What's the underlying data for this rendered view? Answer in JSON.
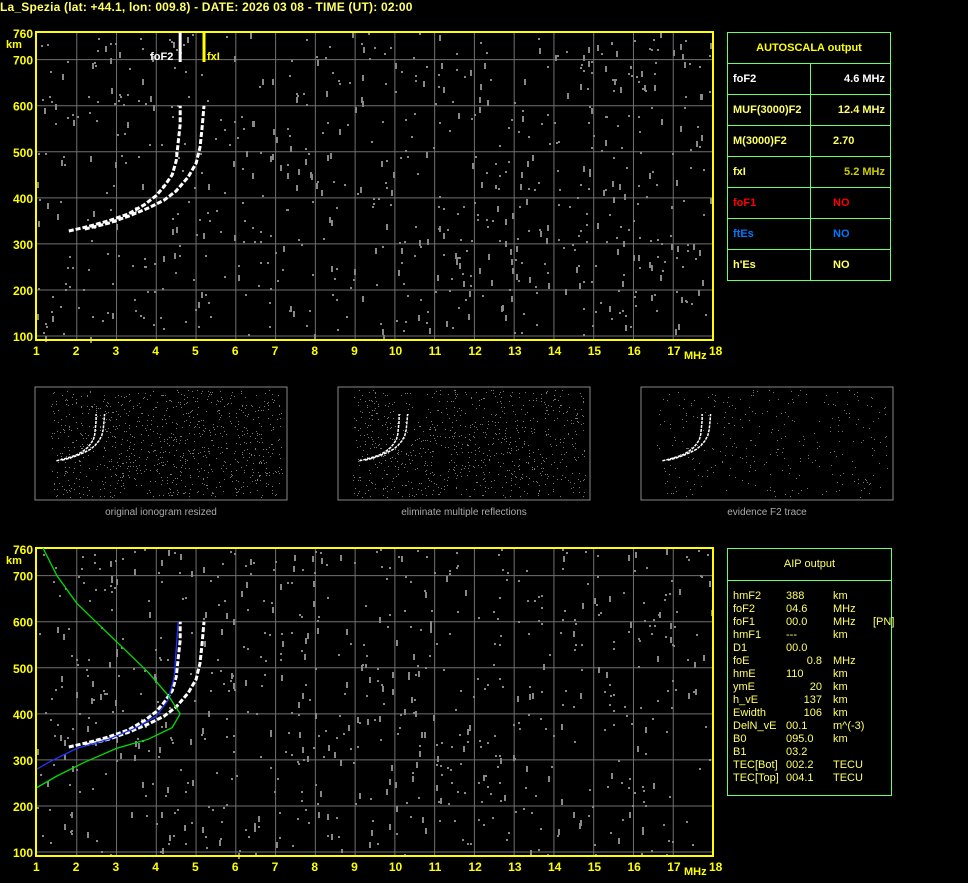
{
  "header": {
    "title": "La_Spezia (lat: +44.1, lon: 009.8) - DATE: 2026 03 08 - TIME (UT): 02:00"
  },
  "colors": {
    "axis": "#ffff00",
    "grid": "#707070",
    "table_border": "#66ff66",
    "trace": "#ffffff",
    "fxl": "#ffff00",
    "profile": "#00dd00",
    "aip_trace": "#2233ff"
  },
  "autoscala": {
    "title": "AUTOSCALA output",
    "rows": [
      {
        "label": "foF2",
        "value": "4.6 MHz",
        "color": "#ffffff",
        "vcolor": "#ffffff"
      },
      {
        "label": "MUF(3000)F2",
        "value": "12.4 MHz",
        "color": "#ffff66",
        "vcolor": "#ffff66"
      },
      {
        "label": "M(3000)F2",
        "value": "2.70",
        "color": "#ffff66",
        "vcolor": "#ffff66"
      },
      {
        "label": "fxI",
        "value": "5.2 MHz",
        "color": "#ffff66",
        "vcolor": "#cccc00"
      },
      {
        "label": "foF1",
        "value": "NO",
        "color": "#ff0000",
        "vcolor": "#ff0000"
      },
      {
        "label": "ftEs",
        "value": "NO",
        "color": "#0077ff",
        "vcolor": "#0077ff"
      },
      {
        "label": "h'Es",
        "value": "NO",
        "color": "#ffff66",
        "vcolor": "#ffff66"
      }
    ]
  },
  "aip": {
    "title": "AIP output",
    "rows": [
      [
        "hmF2",
        "388",
        "km",
        ""
      ],
      [
        "foF2",
        "04.6",
        "MHz",
        ""
      ],
      [
        "foF1",
        "00.0",
        "MHz",
        "[PN]"
      ],
      [
        "hmF1",
        "---",
        "km",
        ""
      ],
      [
        "D1",
        "00.0",
        "",
        ""
      ],
      [
        "foE",
        "0.8",
        "MHz",
        ""
      ],
      [
        "hmE",
        "110",
        "km",
        ""
      ],
      [
        "ymE",
        "20",
        "km",
        ""
      ],
      [
        "h_vE",
        "137",
        "km",
        ""
      ],
      [
        "Ewidth",
        "106",
        "km",
        ""
      ],
      [
        "DelN_vE",
        "00.1",
        "m^(-3)",
        ""
      ],
      [
        "B0",
        "095.0",
        "km",
        ""
      ],
      [
        "B1",
        "03.2",
        "",
        ""
      ],
      [
        "TEC[Bot]",
        "002.2",
        "TECU",
        ""
      ],
      [
        "TEC[Top]",
        "004.1",
        "TECU",
        ""
      ]
    ]
  },
  "thumbnails": [
    {
      "caption": "original ionogram resized"
    },
    {
      "caption": "eliminate multiple reflections"
    },
    {
      "caption": "evidence F2 trace"
    }
  ],
  "chart_data": [
    {
      "type": "scatter",
      "xlabel": "MHz",
      "ylabel": "km",
      "xlim": [
        1,
        18
      ],
      "ylim": [
        100,
        760
      ],
      "xticks": [
        "1",
        "2",
        "3",
        "4",
        "5",
        "6",
        "7",
        "8",
        "9",
        "10",
        "11",
        "12",
        "13",
        "14",
        "15",
        "16",
        "17",
        "18"
      ],
      "yticks": [
        "100",
        "200",
        "300",
        "400",
        "500",
        "600",
        "700",
        "760"
      ],
      "grid": true,
      "markers": [
        {
          "name": "foF2",
          "x": 4.6
        },
        {
          "name": "fxI",
          "x": 5.2
        }
      ],
      "series": [
        {
          "points": [
            [
              1.8,
              328
            ],
            [
              2.3,
              338
            ],
            [
              2.8,
              350
            ],
            [
              3.3,
              365
            ],
            [
              3.7,
              385
            ],
            [
              4.0,
              405
            ],
            [
              4.2,
              425
            ],
            [
              4.4,
              450
            ],
            [
              4.5,
              480
            ],
            [
              4.55,
              520
            ],
            [
              4.6,
              560
            ],
            [
              4.6,
              600
            ]
          ]
        },
        {
          "points": [
            [
              2.2,
              332
            ],
            [
              2.8,
              345
            ],
            [
              3.3,
              360
            ],
            [
              3.8,
              378
            ],
            [
              4.2,
              395
            ],
            [
              4.5,
              415
            ],
            [
              4.8,
              445
            ],
            [
              5.0,
              475
            ],
            [
              5.1,
              510
            ],
            [
              5.15,
              550
            ],
            [
              5.2,
              600
            ]
          ]
        }
      ]
    },
    {
      "type": "line",
      "xlabel": "MHz",
      "ylabel": "km",
      "xlim": [
        1,
        18
      ],
      "ylim": [
        100,
        760
      ],
      "xticks": [
        "1",
        "2",
        "3",
        "4",
        "5",
        "6",
        "7",
        "8",
        "9",
        "10",
        "11",
        "12",
        "13",
        "14",
        "15",
        "16",
        "17",
        "18"
      ],
      "yticks": [
        "100",
        "200",
        "300",
        "400",
        "500",
        "600",
        "700",
        "760"
      ],
      "grid": true,
      "series": [
        {
          "points": [
            [
              1.8,
              328
            ],
            [
              2.3,
              338
            ],
            [
              2.8,
              350
            ],
            [
              3.3,
              365
            ],
            [
              3.7,
              385
            ],
            [
              4.0,
              405
            ],
            [
              4.2,
              425
            ],
            [
              4.4,
              450
            ],
            [
              4.5,
              480
            ],
            [
              4.55,
              520
            ],
            [
              4.6,
              560
            ],
            [
              4.6,
              600
            ]
          ]
        },
        {
          "points": [
            [
              2.2,
              332
            ],
            [
              2.8,
              345
            ],
            [
              3.3,
              360
            ],
            [
              3.8,
              378
            ],
            [
              4.2,
              395
            ],
            [
              4.5,
              415
            ],
            [
              4.8,
              445
            ],
            [
              5.0,
              475
            ],
            [
              5.1,
              510
            ],
            [
              5.15,
              550
            ],
            [
              5.2,
              600
            ]
          ]
        },
        {
          "points": [
            [
              1.0,
              280
            ],
            [
              1.3,
              295
            ],
            [
              2.0,
              325
            ],
            [
              2.8,
              345
            ],
            [
              3.5,
              370
            ],
            [
              4.0,
              395
            ],
            [
              4.3,
              430
            ],
            [
              4.45,
              480
            ],
            [
              4.5,
              540
            ],
            [
              4.55,
              600
            ]
          ]
        },
        {
          "points": [
            [
              1.15,
              760
            ],
            [
              1.5,
              700
            ],
            [
              2.0,
              640
            ],
            [
              2.6,
              590
            ],
            [
              3.2,
              540
            ],
            [
              3.8,
              490
            ],
            [
              4.3,
              440
            ],
            [
              4.6,
              400
            ],
            [
              4.4,
              370
            ],
            [
              3.8,
              345
            ],
            [
              3.0,
              325
            ],
            [
              2.2,
              295
            ],
            [
              1.5,
              265
            ],
            [
              1.0,
              240
            ]
          ]
        }
      ]
    }
  ]
}
